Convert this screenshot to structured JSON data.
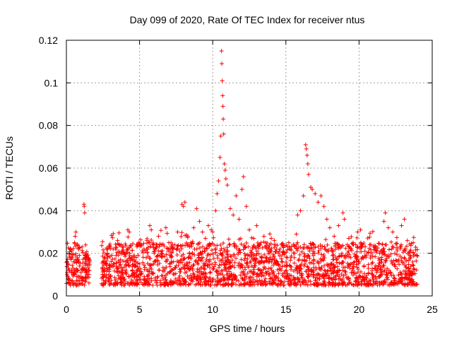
{
  "chart_data": {
    "type": "scatter",
    "title": "Day 099 of 2020, Rate Of TEC Index for receiver ntus",
    "xlabel": "GPS time / hours",
    "ylabel": "ROTI / TECUs",
    "xlim": [
      0,
      25
    ],
    "ylim": [
      0,
      0.12
    ],
    "x_ticks": [
      0,
      5,
      10,
      15,
      20,
      25
    ],
    "x_tick_labels": [
      "0",
      "5",
      "10",
      "15",
      "20",
      "25"
    ],
    "y_ticks": [
      0,
      0.02,
      0.04,
      0.06,
      0.08,
      0.1,
      0.12
    ],
    "y_tick_labels": [
      "0",
      "0.02",
      "0.04",
      "0.06",
      "0.08",
      "0.1",
      "0.12"
    ],
    "grid": true,
    "marker": "+",
    "series_color": "#ff0000",
    "data_coverage_hours": [
      [
        0,
        1.6
      ],
      [
        2.4,
        15.4
      ],
      [
        15.5,
        24
      ]
    ],
    "baseline_range": [
      0.005,
      0.025
    ],
    "series": [
      {
        "name": "ROTI",
        "points": [
          [
            0.05,
            0.01
          ],
          [
            0.1,
            0.015
          ],
          [
            0.15,
            0.008
          ],
          [
            0.2,
            0.012
          ],
          [
            0.25,
            0.018
          ],
          [
            0.3,
            0.022
          ],
          [
            0.35,
            0.011
          ],
          [
            0.4,
            0.007
          ],
          [
            0.45,
            0.013
          ],
          [
            0.5,
            0.016
          ],
          [
            0.55,
            0.025
          ],
          [
            0.6,
            0.028
          ],
          [
            0.65,
            0.03
          ],
          [
            0.7,
            0.012
          ],
          [
            0.8,
            0.009
          ],
          [
            0.9,
            0.014
          ],
          [
            1.0,
            0.011
          ],
          [
            1.1,
            0.013
          ],
          [
            1.2,
            0.043
          ],
          [
            1.22,
            0.042
          ],
          [
            1.25,
            0.039
          ],
          [
            1.3,
            0.016
          ],
          [
            1.4,
            0.01
          ],
          [
            1.5,
            0.018
          ],
          [
            1.55,
            0.012
          ],
          [
            2.5,
            0.012
          ],
          [
            2.6,
            0.018
          ],
          [
            2.7,
            0.015
          ],
          [
            2.8,
            0.02
          ],
          [
            2.9,
            0.01
          ],
          [
            3.0,
            0.014
          ],
          [
            3.2,
            0.022
          ],
          [
            3.4,
            0.019
          ],
          [
            3.5,
            0.026
          ],
          [
            3.7,
            0.017
          ],
          [
            3.8,
            0.021
          ],
          [
            4.0,
            0.02
          ],
          [
            4.2,
            0.031
          ],
          [
            4.3,
            0.03
          ],
          [
            4.5,
            0.017
          ],
          [
            4.8,
            0.024
          ],
          [
            5.0,
            0.015
          ],
          [
            5.3,
            0.022
          ],
          [
            5.5,
            0.026
          ],
          [
            5.7,
            0.033
          ],
          [
            5.8,
            0.031
          ],
          [
            6.0,
            0.02
          ],
          [
            6.3,
            0.028
          ],
          [
            6.5,
            0.024
          ],
          [
            6.8,
            0.032
          ],
          [
            7.0,
            0.025
          ],
          [
            7.3,
            0.022
          ],
          [
            7.6,
            0.03
          ],
          [
            7.9,
            0.043
          ],
          [
            8.0,
            0.042
          ],
          [
            8.1,
            0.044
          ],
          [
            8.3,
            0.028
          ],
          [
            8.5,
            0.025
          ],
          [
            8.7,
            0.032
          ],
          [
            8.9,
            0.041
          ],
          [
            9.1,
            0.035
          ],
          [
            9.3,
            0.03
          ],
          [
            9.5,
            0.027
          ],
          [
            9.7,
            0.033
          ],
          [
            9.9,
            0.031
          ],
          [
            10.0,
            0.03
          ],
          [
            10.2,
            0.04
          ],
          [
            10.3,
            0.048
          ],
          [
            10.4,
            0.054
          ],
          [
            10.5,
            0.065
          ],
          [
            10.55,
            0.075
          ],
          [
            10.6,
            0.115
          ],
          [
            10.62,
            0.109
          ],
          [
            10.65,
            0.101
          ],
          [
            10.68,
            0.094
          ],
          [
            10.7,
            0.089
          ],
          [
            10.72,
            0.083
          ],
          [
            10.75,
            0.076
          ],
          [
            10.8,
            0.062
          ],
          [
            10.85,
            0.059
          ],
          [
            10.9,
            0.055
          ],
          [
            11.0,
            0.052
          ],
          [
            11.2,
            0.041
          ],
          [
            11.4,
            0.038
          ],
          [
            11.6,
            0.047
          ],
          [
            11.8,
            0.036
          ],
          [
            12.0,
            0.05
          ],
          [
            12.1,
            0.056
          ],
          [
            12.3,
            0.042
          ],
          [
            12.5,
            0.031
          ],
          [
            12.8,
            0.027
          ],
          [
            13.0,
            0.033
          ],
          [
            13.3,
            0.025
          ],
          [
            13.5,
            0.028
          ],
          [
            13.8,
            0.021
          ],
          [
            14.0,
            0.027
          ],
          [
            14.3,
            0.024
          ],
          [
            14.6,
            0.022
          ],
          [
            14.9,
            0.02
          ],
          [
            15.2,
            0.025
          ],
          [
            15.35,
            0.018
          ],
          [
            15.6,
            0.02
          ],
          [
            15.8,
            0.038
          ],
          [
            16.0,
            0.04
          ],
          [
            16.2,
            0.047
          ],
          [
            16.35,
            0.071
          ],
          [
            16.4,
            0.069
          ],
          [
            16.45,
            0.066
          ],
          [
            16.5,
            0.062
          ],
          [
            16.55,
            0.057
          ],
          [
            16.7,
            0.051
          ],
          [
            16.8,
            0.05
          ],
          [
            17.0,
            0.048
          ],
          [
            17.2,
            0.044
          ],
          [
            17.4,
            0.047
          ],
          [
            17.6,
            0.042
          ],
          [
            17.8,
            0.036
          ],
          [
            18.0,
            0.032
          ],
          [
            18.3,
            0.028
          ],
          [
            18.6,
            0.033
          ],
          [
            18.9,
            0.039
          ],
          [
            19.0,
            0.036
          ],
          [
            19.3,
            0.027
          ],
          [
            19.6,
            0.025
          ],
          [
            19.9,
            0.03
          ],
          [
            20.1,
            0.031
          ],
          [
            20.4,
            0.021
          ],
          [
            20.8,
            0.024
          ],
          [
            21.1,
            0.023
          ],
          [
            21.4,
            0.02
          ],
          [
            21.7,
            0.035
          ],
          [
            21.8,
            0.039
          ],
          [
            22.0,
            0.032
          ],
          [
            22.3,
            0.03
          ],
          [
            22.6,
            0.022
          ],
          [
            22.9,
            0.033
          ],
          [
            23.1,
            0.036
          ],
          [
            23.3,
            0.026
          ],
          [
            23.5,
            0.018
          ],
          [
            23.7,
            0.025
          ],
          [
            23.95,
            0.019
          ]
        ]
      }
    ]
  }
}
